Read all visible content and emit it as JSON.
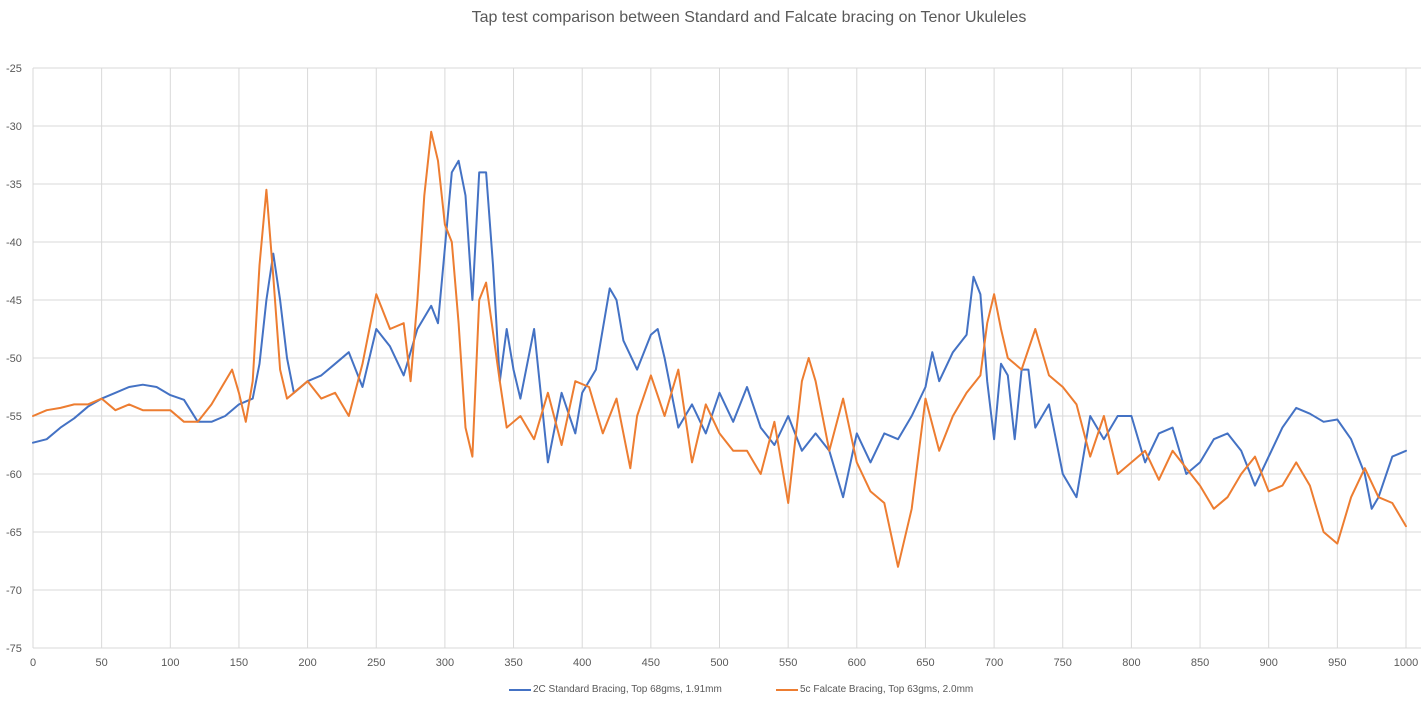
{
  "chart_data": {
    "type": "line",
    "title": "Tap test comparison between Standard and Falcate bracing on Tenor Ukuleles",
    "xlabel": "",
    "ylabel": "",
    "xlim": [
      0,
      1000
    ],
    "ylim": [
      -75,
      -25
    ],
    "x_ticks": [
      0,
      50,
      100,
      150,
      200,
      250,
      300,
      350,
      400,
      450,
      500,
      550,
      600,
      650,
      700,
      750,
      800,
      850,
      900,
      950,
      1000
    ],
    "y_ticks": [
      -25,
      -30,
      -35,
      -40,
      -45,
      -50,
      -55,
      -60,
      -65,
      -70,
      -75
    ],
    "grid": true,
    "legend_position": "bottom",
    "series": [
      {
        "name": "2C Standard Bracing, Top 68gms, 1.91mm",
        "color": "#4472C4",
        "points": [
          [
            0,
            -57.3
          ],
          [
            10,
            -57
          ],
          [
            20,
            -56
          ],
          [
            30,
            -55.2
          ],
          [
            40,
            -54.2
          ],
          [
            50,
            -53.5
          ],
          [
            60,
            -53
          ],
          [
            70,
            -52.5
          ],
          [
            80,
            -52.3
          ],
          [
            90,
            -52.5
          ],
          [
            100,
            -53.2
          ],
          [
            110,
            -53.6
          ],
          [
            120,
            -55.5
          ],
          [
            130,
            -55.5
          ],
          [
            140,
            -55
          ],
          [
            150,
            -54
          ],
          [
            160,
            -53.5
          ],
          [
            165,
            -50.5
          ],
          [
            170,
            -45
          ],
          [
            175,
            -41
          ],
          [
            180,
            -45
          ],
          [
            185,
            -50
          ],
          [
            190,
            -53
          ],
          [
            200,
            -52
          ],
          [
            210,
            -51.5
          ],
          [
            220,
            -50.5
          ],
          [
            230,
            -49.5
          ],
          [
            240,
            -52.5
          ],
          [
            250,
            -47.5
          ],
          [
            260,
            -49
          ],
          [
            270,
            -51.5
          ],
          [
            280,
            -47.5
          ],
          [
            290,
            -45.5
          ],
          [
            295,
            -47
          ],
          [
            300,
            -40.5
          ],
          [
            305,
            -34
          ],
          [
            310,
            -33
          ],
          [
            315,
            -36
          ],
          [
            320,
            -45
          ],
          [
            325,
            -34
          ],
          [
            330,
            -34
          ],
          [
            335,
            -42
          ],
          [
            340,
            -52
          ],
          [
            345,
            -47.5
          ],
          [
            350,
            -51
          ],
          [
            355,
            -53.5
          ],
          [
            365,
            -47.5
          ],
          [
            375,
            -59
          ],
          [
            385,
            -53
          ],
          [
            395,
            -56.5
          ],
          [
            400,
            -53
          ],
          [
            410,
            -51
          ],
          [
            420,
            -44
          ],
          [
            425,
            -45
          ],
          [
            430,
            -48.5
          ],
          [
            440,
            -51
          ],
          [
            450,
            -48
          ],
          [
            455,
            -47.5
          ],
          [
            460,
            -50
          ],
          [
            470,
            -56
          ],
          [
            480,
            -54
          ],
          [
            490,
            -56.5
          ],
          [
            500,
            -53
          ],
          [
            510,
            -55.5
          ],
          [
            520,
            -52.5
          ],
          [
            530,
            -56
          ],
          [
            540,
            -57.5
          ],
          [
            550,
            -55
          ],
          [
            560,
            -58
          ],
          [
            570,
            -56.5
          ],
          [
            580,
            -58
          ],
          [
            590,
            -62
          ],
          [
            600,
            -56.5
          ],
          [
            610,
            -59
          ],
          [
            620,
            -56.5
          ],
          [
            630,
            -57
          ],
          [
            640,
            -55
          ],
          [
            650,
            -52.5
          ],
          [
            655,
            -49.5
          ],
          [
            660,
            -52
          ],
          [
            670,
            -49.5
          ],
          [
            680,
            -48
          ],
          [
            685,
            -43
          ],
          [
            690,
            -44.5
          ],
          [
            695,
            -52
          ],
          [
            700,
            -57
          ],
          [
            705,
            -50.5
          ],
          [
            710,
            -51.5
          ],
          [
            715,
            -57
          ],
          [
            720,
            -51
          ],
          [
            725,
            -51
          ],
          [
            730,
            -56
          ],
          [
            740,
            -54
          ],
          [
            750,
            -60
          ],
          [
            760,
            -62
          ],
          [
            770,
            -55
          ],
          [
            780,
            -57
          ],
          [
            790,
            -55
          ],
          [
            800,
            -55
          ],
          [
            810,
            -59
          ],
          [
            820,
            -56.5
          ],
          [
            830,
            -56
          ],
          [
            840,
            -60
          ],
          [
            850,
            -59
          ],
          [
            860,
            -57
          ],
          [
            870,
            -56.5
          ],
          [
            880,
            -58
          ],
          [
            890,
            -61
          ],
          [
            900,
            -58.5
          ],
          [
            910,
            -56
          ],
          [
            920,
            -54.3
          ],
          [
            930,
            -54.8
          ],
          [
            940,
            -55.5
          ],
          [
            950,
            -55.3
          ],
          [
            960,
            -57
          ],
          [
            970,
            -60
          ],
          [
            975,
            -63
          ],
          [
            980,
            -62
          ],
          [
            990,
            -58.5
          ],
          [
            1000,
            -58
          ]
        ]
      },
      {
        "name": "5c Falcate Bracing, Top 63gms, 2.0mm",
        "color": "#ED7D31",
        "points": [
          [
            0,
            -55
          ],
          [
            10,
            -54.5
          ],
          [
            20,
            -54.3
          ],
          [
            30,
            -54
          ],
          [
            40,
            -54
          ],
          [
            50,
            -53.5
          ],
          [
            60,
            -54.5
          ],
          [
            70,
            -54
          ],
          [
            80,
            -54.5
          ],
          [
            90,
            -54.5
          ],
          [
            100,
            -54.5
          ],
          [
            110,
            -55.5
          ],
          [
            120,
            -55.5
          ],
          [
            130,
            -54
          ],
          [
            140,
            -52
          ],
          [
            145,
            -51
          ],
          [
            150,
            -53
          ],
          [
            155,
            -55.5
          ],
          [
            160,
            -52
          ],
          [
            165,
            -42
          ],
          [
            170,
            -35.5
          ],
          [
            175,
            -43
          ],
          [
            180,
            -51
          ],
          [
            185,
            -53.5
          ],
          [
            190,
            -53
          ],
          [
            200,
            -52
          ],
          [
            210,
            -53.5
          ],
          [
            220,
            -53
          ],
          [
            230,
            -55
          ],
          [
            240,
            -50.5
          ],
          [
            250,
            -44.5
          ],
          [
            260,
            -47.5
          ],
          [
            270,
            -47
          ],
          [
            275,
            -52
          ],
          [
            280,
            -45
          ],
          [
            285,
            -36
          ],
          [
            290,
            -30.5
          ],
          [
            295,
            -33
          ],
          [
            300,
            -38.5
          ],
          [
            305,
            -40
          ],
          [
            310,
            -47
          ],
          [
            315,
            -56
          ],
          [
            320,
            -58.5
          ],
          [
            325,
            -45
          ],
          [
            330,
            -43.5
          ],
          [
            340,
            -52
          ],
          [
            345,
            -56
          ],
          [
            355,
            -55
          ],
          [
            365,
            -57
          ],
          [
            375,
            -53
          ],
          [
            385,
            -57.5
          ],
          [
            395,
            -52
          ],
          [
            405,
            -52.5
          ],
          [
            415,
            -56.5
          ],
          [
            425,
            -53.5
          ],
          [
            435,
            -59.5
          ],
          [
            440,
            -55
          ],
          [
            450,
            -51.5
          ],
          [
            460,
            -55
          ],
          [
            470,
            -51
          ],
          [
            480,
            -59
          ],
          [
            490,
            -54
          ],
          [
            500,
            -56.5
          ],
          [
            510,
            -58
          ],
          [
            520,
            -58
          ],
          [
            530,
            -60
          ],
          [
            540,
            -55.5
          ],
          [
            550,
            -62.5
          ],
          [
            560,
            -52
          ],
          [
            565,
            -50
          ],
          [
            570,
            -52
          ],
          [
            580,
            -58
          ],
          [
            590,
            -53.5
          ],
          [
            600,
            -59
          ],
          [
            610,
            -61.5
          ],
          [
            620,
            -62.5
          ],
          [
            630,
            -68
          ],
          [
            640,
            -63
          ],
          [
            650,
            -53.5
          ],
          [
            660,
            -58
          ],
          [
            670,
            -55
          ],
          [
            680,
            -53
          ],
          [
            690,
            -51.5
          ],
          [
            695,
            -47
          ],
          [
            700,
            -44.5
          ],
          [
            705,
            -47.5
          ],
          [
            710,
            -50
          ],
          [
            720,
            -51
          ],
          [
            730,
            -47.5
          ],
          [
            740,
            -51.5
          ],
          [
            750,
            -52.5
          ],
          [
            760,
            -54
          ],
          [
            770,
            -58.5
          ],
          [
            780,
            -55
          ],
          [
            790,
            -60
          ],
          [
            800,
            -59
          ],
          [
            810,
            -58
          ],
          [
            820,
            -60.5
          ],
          [
            830,
            -58
          ],
          [
            840,
            -59.5
          ],
          [
            850,
            -61
          ],
          [
            860,
            -63
          ],
          [
            870,
            -62
          ],
          [
            880,
            -60
          ],
          [
            890,
            -58.5
          ],
          [
            900,
            -61.5
          ],
          [
            910,
            -61
          ],
          [
            920,
            -59
          ],
          [
            930,
            -61
          ],
          [
            940,
            -65
          ],
          [
            950,
            -66
          ],
          [
            960,
            -62
          ],
          [
            970,
            -59.5
          ],
          [
            980,
            -62
          ],
          [
            990,
            -62.5
          ],
          [
            1000,
            -64.5
          ]
        ]
      }
    ]
  }
}
